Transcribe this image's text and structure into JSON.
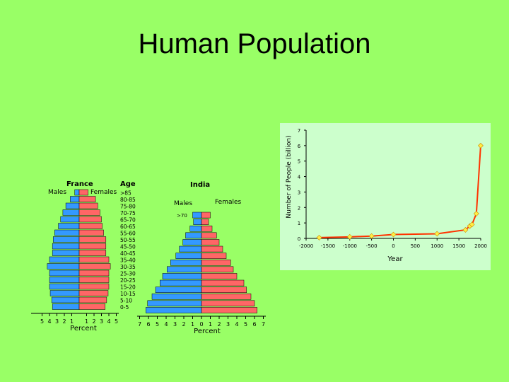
{
  "slide": {
    "title": "Human Population"
  },
  "colors": {
    "background": "#99ff66",
    "males": "#3399ff",
    "females": "#ff6666",
    "line": "#ff3300",
    "marker": "#ffee44",
    "panel": "#ccffcc"
  },
  "chart_data": [
    {
      "type": "bar",
      "subtype": "population-pyramid",
      "title": "France",
      "age_header": "Age",
      "male_label": "Males",
      "female_label": "Females",
      "xlabel": "Percent",
      "x_ticks": [
        "5",
        "4",
        "3",
        "2",
        "1",
        "1",
        "2",
        "3",
        "4",
        "5"
      ],
      "age_groups": [
        ">85",
        "80-85",
        "75-80",
        "70-75",
        "65-70",
        "60-65",
        "55-60",
        "50-55",
        "45-50",
        "40-45",
        "35-40",
        "30-35",
        "25-30",
        "20-25",
        "15-20",
        "10-15",
        "5-10",
        "0-5"
      ],
      "males": [
        0.6,
        1.2,
        1.8,
        2.2,
        2.5,
        2.8,
        3.3,
        3.5,
        3.6,
        3.6,
        4.0,
        4.3,
        4.0,
        4.0,
        4.0,
        3.9,
        3.7,
        3.6
      ],
      "females": [
        1.2,
        2.2,
        2.5,
        2.8,
        3.0,
        3.1,
        3.3,
        3.6,
        3.6,
        3.6,
        4.0,
        4.2,
        4.0,
        4.0,
        4.0,
        3.9,
        3.7,
        3.5
      ],
      "xlim": [
        -5,
        5
      ]
    },
    {
      "type": "bar",
      "subtype": "population-pyramid",
      "title": "India",
      "male_label": "Males",
      "female_label": "Females",
      "top_age_label": ">70",
      "xlabel": "Percent",
      "x_ticks": [
        "7",
        "6",
        "5",
        "4",
        "3",
        "2",
        "1",
        "0",
        "1",
        "2",
        "3",
        "4",
        "5",
        "6",
        "7"
      ],
      "age_groups": [
        ">70",
        "65-70",
        "60-65",
        "55-60",
        "50-55",
        "45-50",
        "40-45",
        "35-40",
        "30-35",
        "25-30",
        "20-25",
        "15-20",
        "10-15",
        "5-10",
        "0-5"
      ],
      "males": [
        1.0,
        0.9,
        1.3,
        1.8,
        2.1,
        2.5,
        2.9,
        3.5,
        3.9,
        4.4,
        4.7,
        5.2,
        5.6,
        6.1,
        6.3
      ],
      "females": [
        1.0,
        0.8,
        1.2,
        1.7,
        2.0,
        2.4,
        2.8,
        3.3,
        3.6,
        4.0,
        4.8,
        5.1,
        5.6,
        6.0,
        6.3
      ],
      "xlim": [
        -7,
        7
      ]
    },
    {
      "type": "line",
      "xlabel": "Year",
      "ylabel": "Number of People (billion)",
      "x_ticks": [
        "-2000",
        "-1500",
        "-1000",
        "-500",
        "0",
        "500",
        "1000",
        "1500",
        "2000"
      ],
      "y_ticks": [
        "0",
        "1",
        "2",
        "3",
        "4",
        "5",
        "6",
        "7"
      ],
      "xlim": [
        -2000,
        2000
      ],
      "ylim": [
        0,
        7
      ],
      "points": [
        {
          "x": -1700,
          "y": 0.05
        },
        {
          "x": -1000,
          "y": 0.1
        },
        {
          "x": -500,
          "y": 0.15
        },
        {
          "x": 0,
          "y": 0.25
        },
        {
          "x": 1000,
          "y": 0.3
        },
        {
          "x": 1650,
          "y": 0.55
        },
        {
          "x": 1750,
          "y": 0.8
        },
        {
          "x": 1800,
          "y": 0.9
        },
        {
          "x": 1900,
          "y": 1.6
        },
        {
          "x": 1999,
          "y": 6.0
        }
      ]
    }
  ]
}
